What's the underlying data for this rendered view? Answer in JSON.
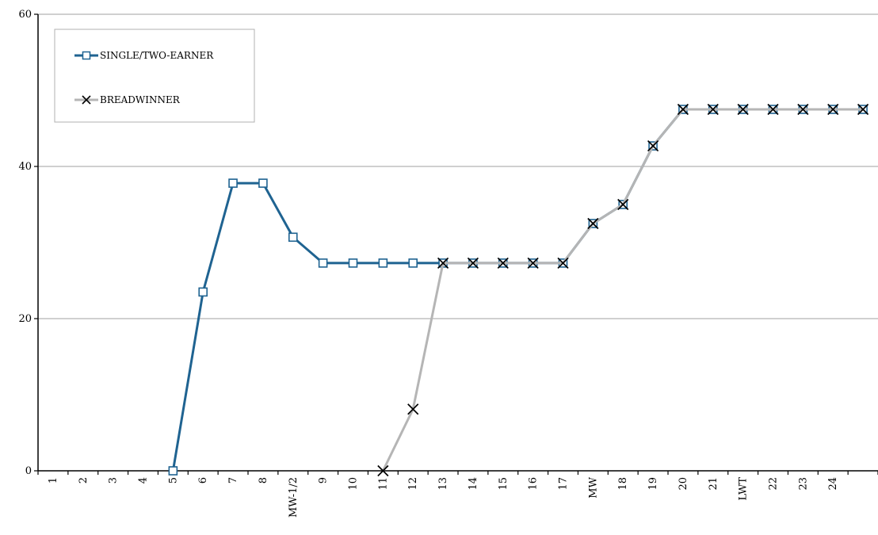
{
  "chart_data": {
    "type": "line",
    "categories": [
      "1",
      "2",
      "3",
      "4",
      "5",
      "6",
      "7",
      "8",
      "MW-1/2",
      "9",
      "10",
      "11",
      "12",
      "13",
      "14",
      "15",
      "16",
      "17",
      "MW",
      "18",
      "19",
      "20",
      "21",
      "LWT",
      "22",
      "23",
      "24",
      ""
    ],
    "ylim": [
      0,
      60
    ],
    "yticks": [
      0,
      20,
      40,
      60
    ],
    "grid": true,
    "legend_position": "top-left",
    "series": [
      {
        "name": "SINGLE/TWO-EARNER",
        "color": "#1F6391",
        "marker": "square",
        "values": [
          null,
          null,
          null,
          null,
          0,
          23.5,
          37.8,
          37.8,
          30.7,
          27.3,
          27.3,
          27.3,
          27.3,
          27.3,
          27.3,
          27.3,
          27.3,
          27.3,
          32.5,
          35,
          42.7,
          47.5,
          47.5,
          47.5,
          47.5,
          47.5,
          47.5,
          47.5
        ]
      },
      {
        "name": "BREADWINNER",
        "color": "#B5B5B5",
        "marker": "x",
        "values": [
          null,
          null,
          null,
          null,
          null,
          null,
          null,
          null,
          null,
          null,
          null,
          0,
          8.1,
          27.3,
          27.3,
          27.3,
          27.3,
          27.3,
          32.5,
          35,
          42.7,
          47.5,
          47.5,
          47.5,
          47.5,
          47.5,
          47.5,
          47.5
        ]
      }
    ]
  }
}
